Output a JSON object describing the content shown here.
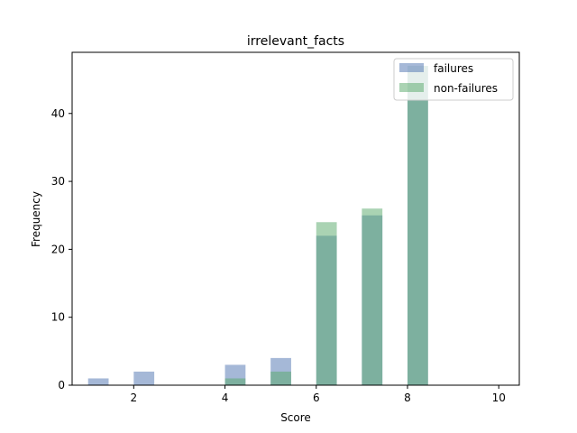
{
  "chart_data": {
    "type": "bar",
    "title": "irrelevant_facts",
    "xlabel": "Score",
    "ylabel": "Frequency",
    "xlim": [
      0.65,
      10.45
    ],
    "ylim": [
      0,
      49
    ],
    "xticks": [
      2,
      4,
      6,
      8,
      10
    ],
    "yticks": [
      0,
      10,
      20,
      30,
      40
    ],
    "grid": false,
    "legend_position": "top-right",
    "bin_width": 0.45,
    "series": [
      {
        "name": "failures",
        "color": "#4c72b0",
        "opacity": 0.5,
        "bins": [
          {
            "x": 1.0,
            "value": 1
          },
          {
            "x": 2.0,
            "value": 2
          },
          {
            "x": 4.0,
            "value": 3
          },
          {
            "x": 5.0,
            "value": 4
          },
          {
            "x": 6.0,
            "value": 22
          },
          {
            "x": 7.0,
            "value": 25
          },
          {
            "x": 8.0,
            "value": 47
          }
        ]
      },
      {
        "name": "non-failures",
        "color": "#55a868",
        "opacity": 0.5,
        "bins": [
          {
            "x": 4.0,
            "value": 1
          },
          {
            "x": 5.0,
            "value": 2
          },
          {
            "x": 6.0,
            "value": 24
          },
          {
            "x": 7.0,
            "value": 26
          },
          {
            "x": 8.0,
            "value": 47
          }
        ]
      }
    ]
  }
}
